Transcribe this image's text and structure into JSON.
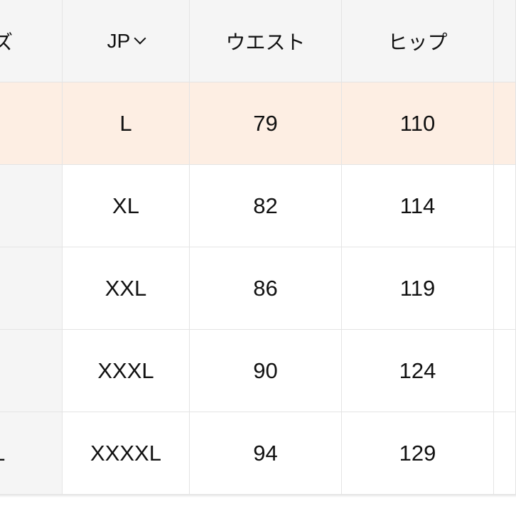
{
  "header": {
    "size_partial": "ズ",
    "jp": "JP",
    "waist": "ウエスト",
    "hip": "ヒップ"
  },
  "rows": [
    {
      "size_partial": "",
      "jp": "L",
      "waist": "79",
      "hip": "110",
      "highlighted": true
    },
    {
      "size_partial": "",
      "jp": "XL",
      "waist": "82",
      "hip": "114",
      "highlighted": false
    },
    {
      "size_partial": "",
      "jp": "XXL",
      "waist": "86",
      "hip": "119",
      "highlighted": false
    },
    {
      "size_partial": "",
      "jp": "XXXL",
      "waist": "90",
      "hip": "124",
      "highlighted": false
    },
    {
      "size_partial": "L",
      "jp": "XXXXL",
      "waist": "94",
      "hip": "129",
      "highlighted": false
    }
  ],
  "icons": {
    "jp_dropdown": "chevron-down-icon"
  },
  "colors": {
    "header_bg": "#f5f5f5",
    "highlight_row": "#fdeee3",
    "border": "#e4e4e4"
  }
}
